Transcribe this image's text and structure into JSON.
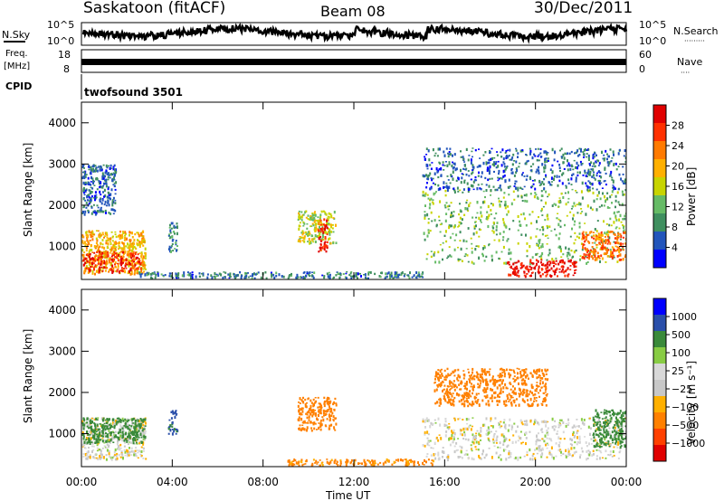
{
  "header": {
    "station": "Saskatoon (fitACF)",
    "beam": "Beam 08",
    "date": "30/Dec/2011"
  },
  "top_panels": {
    "nsky": {
      "left_label": "N.Sky",
      "ticks_left": [
        "10^5",
        "10^0"
      ],
      "ticks_right": [
        "10^5",
        "10^0"
      ],
      "right_label": "N.Search",
      "right_marker": "·········"
    },
    "freq": {
      "left_label_1": "Freq.",
      "left_label_2": "[MHz]",
      "ticks_left": [
        "18",
        "8"
      ],
      "ticks_right": [
        "60",
        "0"
      ],
      "right_label": "Nave",
      "right_marker": "····"
    },
    "cpid": {
      "left_label": "CPID",
      "program": "twofsound 3501"
    }
  },
  "colors": {
    "power": [
      "#0000ff",
      "#2255bb",
      "#3f8f5f",
      "#66bb66",
      "#c8d400",
      "#ffb000",
      "#ff7a00",
      "#ff3000",
      "#e00000"
    ],
    "velocity": [
      "#e00000",
      "#ff4000",
      "#ff8000",
      "#ffb000",
      "#c8c8c8",
      "#d8d8d8",
      "#88cc44",
      "#3a8a3a",
      "#2a4faa",
      "#0000ff"
    ]
  },
  "chart_data": [
    {
      "type": "heatmap",
      "name": "power",
      "title": "",
      "xlabel": "",
      "ylabel": "Slant Range [km]",
      "x_ticks": [
        "00:00",
        "04:00",
        "08:00",
        "12:00",
        "16:00",
        "20:00",
        "00:00"
      ],
      "x_range_hours": [
        0,
        24
      ],
      "y_ticks": [
        "1000",
        "2000",
        "3000",
        "4000"
      ],
      "y_range_km": [
        200,
        4500
      ],
      "colorbar": {
        "label": "Power [dB]",
        "ticks": [
          "4",
          "8",
          "12",
          "16",
          "20",
          "24",
          "28"
        ],
        "range": [
          0,
          30
        ]
      },
      "regions": [
        {
          "x": [
            0.0,
            2.8
          ],
          "y": [
            350,
            1400
          ],
          "value": 18
        },
        {
          "x": [
            0.0,
            2.6
          ],
          "y": [
            400,
            900
          ],
          "value": 26
        },
        {
          "x": [
            0.0,
            1.5
          ],
          "y": [
            1800,
            3000
          ],
          "value": 6
        },
        {
          "x": [
            3.8,
            4.2
          ],
          "y": [
            900,
            1600
          ],
          "value": 8
        },
        {
          "x": [
            9.5,
            11.2
          ],
          "y": [
            1100,
            1900
          ],
          "value": 14
        },
        {
          "x": [
            10.4,
            10.8
          ],
          "y": [
            900,
            1700
          ],
          "value": 27
        },
        {
          "x": [
            15.0,
            24.0
          ],
          "y": [
            600,
            2400
          ],
          "value": 12
        },
        {
          "x": [
            15.0,
            24.0
          ],
          "y": [
            2400,
            3400
          ],
          "value": 6
        },
        {
          "x": [
            18.7,
            21.8
          ],
          "y": [
            300,
            700
          ],
          "value": 28
        },
        {
          "x": [
            22.0,
            24.0
          ],
          "y": [
            700,
            1400
          ],
          "value": 22
        },
        {
          "x": [
            2.5,
            15.0
          ],
          "y": [
            250,
            400
          ],
          "value": 7
        }
      ]
    },
    {
      "type": "heatmap",
      "name": "velocity",
      "title": "",
      "xlabel": "Time UT",
      "ylabel": "Slant Range [km]",
      "x_ticks": [
        "00:00",
        "04:00",
        "08:00",
        "12:00",
        "16:00",
        "20:00",
        "00:00"
      ],
      "x_range_hours": [
        0,
        24
      ],
      "y_ticks": [
        "1000",
        "2000",
        "3000",
        "4000"
      ],
      "y_range_km": [
        200,
        4500
      ],
      "colorbar": {
        "label": "Velocity [m s⁻¹]",
        "ticks": [
          "1000",
          "500",
          "100",
          "25",
          "−25",
          "−100",
          "−500",
          "−1000"
        ]
      },
      "regions": [
        {
          "x": [
            0.0,
            2.8
          ],
          "y": [
            400,
            1400
          ],
          "value": 0
        },
        {
          "x": [
            0.0,
            2.8
          ],
          "y": [
            800,
            1400
          ],
          "value": 150
        },
        {
          "x": [
            3.8,
            4.2
          ],
          "y": [
            1000,
            1600
          ],
          "value": 600
        },
        {
          "x": [
            9.5,
            11.2
          ],
          "y": [
            1100,
            1900
          ],
          "value": -300
        },
        {
          "x": [
            15.5,
            20.5
          ],
          "y": [
            1700,
            2600
          ],
          "value": -300
        },
        {
          "x": [
            15.0,
            24.0
          ],
          "y": [
            400,
            1400
          ],
          "value": 0
        },
        {
          "x": [
            22.5,
            24.0
          ],
          "y": [
            700,
            1600
          ],
          "value": 150
        },
        {
          "x": [
            9.0,
            15.5
          ],
          "y": [
            250,
            400
          ],
          "value": -120
        }
      ]
    }
  ]
}
